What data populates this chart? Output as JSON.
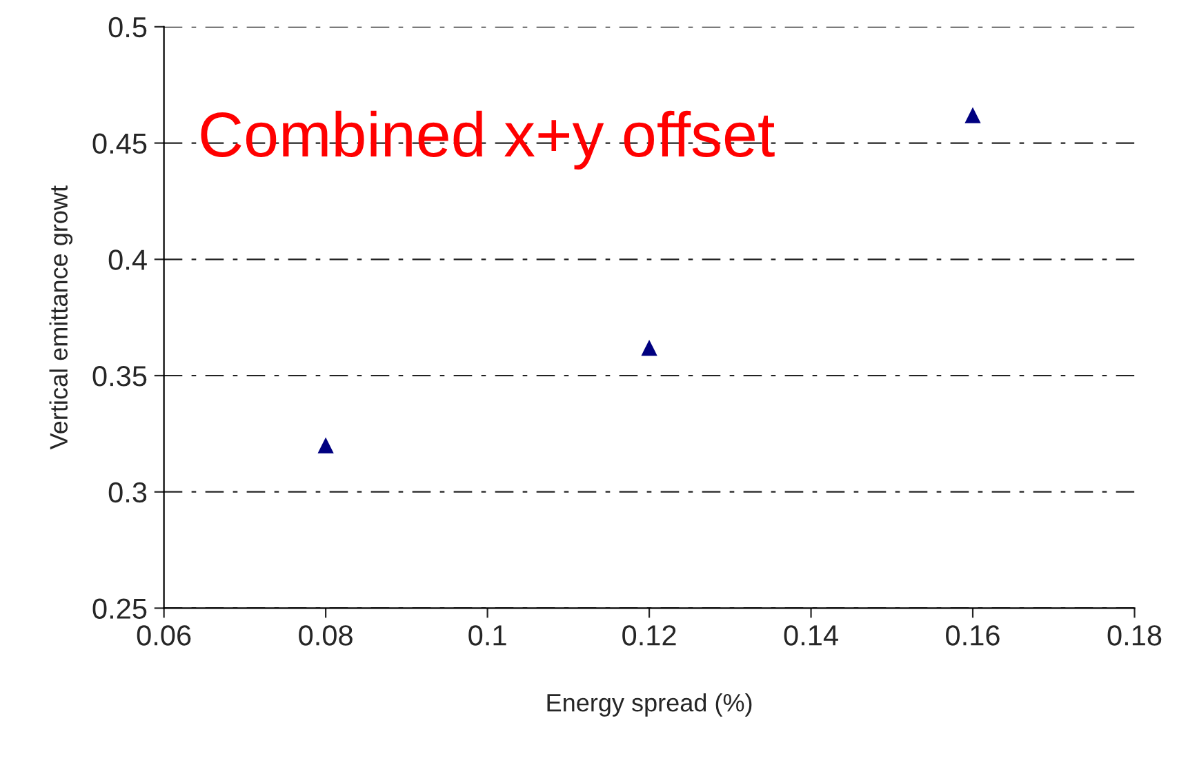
{
  "chart_data": {
    "type": "scatter",
    "xlabel": "Energy spread (%)",
    "ylabel": "Vertical emittance growt",
    "x": [
      0.08,
      0.12,
      0.16
    ],
    "series": [
      {
        "color": "#000080",
        "values": [
          0.32,
          0.362,
          0.462
        ]
      }
    ],
    "marker": "triangle",
    "xlim": [
      0.06,
      0.18
    ],
    "xticks": [
      0.06,
      0.08,
      0.1,
      0.12,
      0.14,
      0.16,
      0.18
    ],
    "ylim": [
      0.25,
      0.5
    ],
    "yticks": [
      0.25,
      0.3,
      0.35,
      0.4,
      0.45,
      0.5
    ],
    "grid": "y",
    "annotations": [
      "Combined x+y offset"
    ]
  }
}
